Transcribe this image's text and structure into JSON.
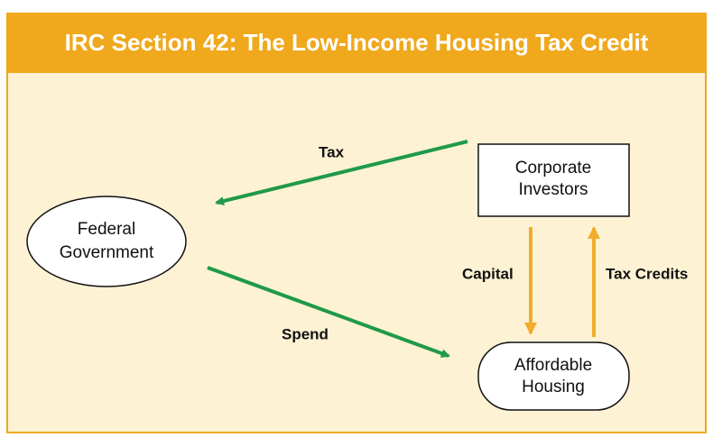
{
  "title": "IRC Section 42: The Low-Income Housing Tax Credit",
  "nodes": [
    {
      "id": "federal",
      "lines": [
        "Federal",
        "Government"
      ]
    },
    {
      "id": "corporate",
      "lines": [
        "Corporate",
        "Investors"
      ]
    },
    {
      "id": "housing",
      "lines": [
        "Affordable",
        "Housing"
      ]
    }
  ],
  "edges": [
    {
      "label": "Tax"
    },
    {
      "label": "Spend"
    },
    {
      "label": "Capital"
    },
    {
      "label": "Tax Credits"
    }
  ]
}
